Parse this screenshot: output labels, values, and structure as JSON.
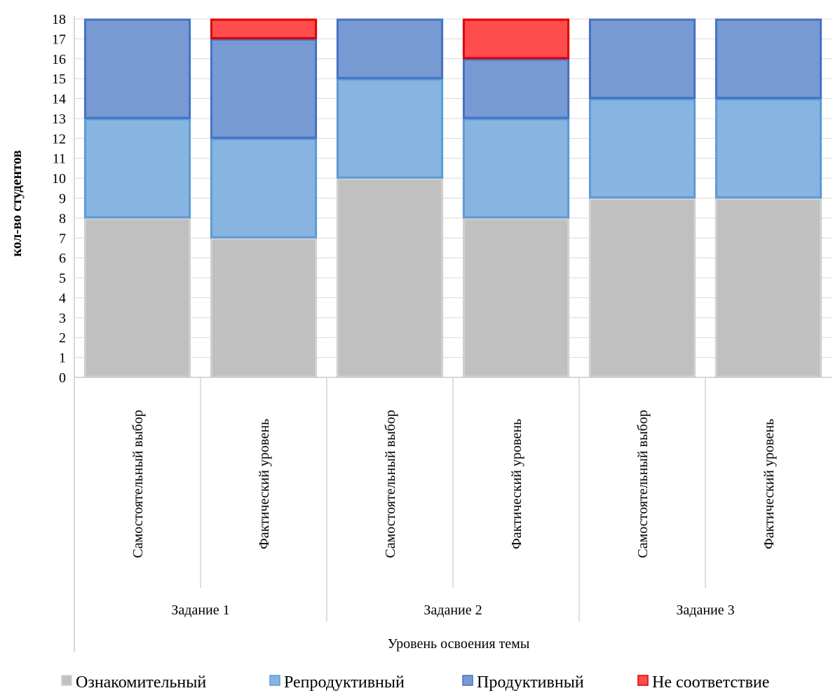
{
  "chart_data": {
    "type": "bar",
    "stacked": true,
    "ylabel": "кол-во студентов",
    "xlabel": "Уровень освоения темы",
    "ylim": [
      0,
      18
    ],
    "yticks": [
      0,
      1,
      2,
      3,
      4,
      5,
      6,
      7,
      8,
      9,
      10,
      11,
      12,
      13,
      14,
      15,
      16,
      17,
      18
    ],
    "grid": true,
    "legend_position": "bottom",
    "groups": [
      "Задание 1",
      "Задание 2",
      "Задание 3"
    ],
    "categories": [
      "Самостоятельный выбор",
      "Фактический уровень",
      "Самостоятельный выбор",
      "Фактический уровень",
      "Самостоятельный выбор",
      "Фактический уровень"
    ],
    "series": [
      {
        "name": "Ознакомительный",
        "color": "#c0c0c0",
        "edge": "#d0d0d0",
        "values": [
          8,
          7,
          10,
          8,
          9,
          9
        ]
      },
      {
        "name": "Репродуктивный",
        "color": "#87b4e0",
        "edge": "#5b9bd5",
        "values": [
          5,
          5,
          5,
          5,
          5,
          5
        ]
      },
      {
        "name": "Продуктивный",
        "color": "#779ad3",
        "edge": "#4472c4",
        "values": [
          5,
          5,
          3,
          3,
          4,
          4
        ]
      },
      {
        "name": "Не соответствие",
        "color": "#ff4c4c",
        "edge": "#e00000",
        "values": [
          0,
          1,
          0,
          2,
          0,
          0
        ]
      }
    ]
  }
}
